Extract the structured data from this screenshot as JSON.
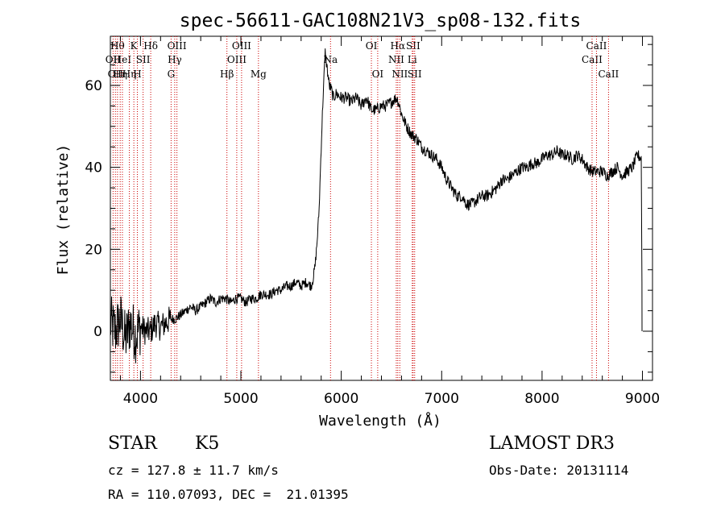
{
  "chart_data": {
    "type": "line",
    "title": "spec-56611-GAC108N21V3_sp08-132.fits",
    "xlabel": "Wavelength (Å)",
    "ylabel": "Flux (relative)",
    "xlim": [
      3700,
      9100
    ],
    "ylim": [
      -12,
      72
    ],
    "xticks": [
      4000,
      5000,
      6000,
      7000,
      8000,
      9000
    ],
    "yticks": [
      0,
      20,
      40,
      60
    ],
    "grid": false,
    "line_color": "#000000",
    "marker_color": "#cc0000",
    "series": [
      {
        "x": [
          3700,
          3750,
          3800,
          3850,
          3900,
          3950,
          4000,
          4050,
          4100,
          4150,
          4200,
          4250,
          4300,
          4350,
          4400,
          4450,
          4500,
          4550,
          4600,
          4650,
          4700,
          4750,
          4800,
          4850,
          4900,
          4950,
          5000,
          5050,
          5100,
          5150,
          5200,
          5250,
          5300,
          5350,
          5400,
          5450,
          5500,
          5550,
          5600,
          5650,
          5700,
          5720,
          5740,
          5760,
          5780,
          5800,
          5820,
          5840,
          5860,
          5880,
          5900,
          5920,
          5950,
          6000,
          6050,
          6100,
          6150,
          6200,
          6250,
          6300,
          6350,
          6400,
          6450,
          6500,
          6550,
          6570,
          6600,
          6650,
          6700,
          6750,
          6800,
          6850,
          6900,
          6950,
          7000,
          7050,
          7100,
          7150,
          7200,
          7250,
          7300,
          7350,
          7400,
          7450,
          7500,
          7550,
          7600,
          7650,
          7700,
          7750,
          7800,
          7850,
          7900,
          7950,
          8000,
          8050,
          8100,
          8150,
          8200,
          8250,
          8300,
          8350,
          8400,
          8450,
          8500,
          8550,
          8600,
          8650,
          8700,
          8750,
          8800,
          8850,
          8900,
          8950,
          9000
        ],
        "y": [
          2,
          0,
          3,
          -2,
          2,
          -1,
          1,
          0,
          0,
          2,
          1,
          2,
          3,
          3,
          4,
          5,
          6,
          5,
          6,
          7,
          8,
          7,
          8,
          8,
          7,
          8,
          8,
          7,
          8,
          8,
          9,
          9,
          9,
          10,
          10,
          11,
          11,
          12,
          11,
          12,
          11,
          13,
          16,
          22,
          30,
          45,
          58,
          68,
          64,
          60,
          59,
          57,
          58,
          57,
          57,
          56,
          57,
          55,
          57,
          54,
          54,
          55,
          55,
          56,
          57,
          56,
          53,
          50,
          48,
          47,
          45,
          44,
          43,
          42,
          40,
          37,
          35,
          33,
          33,
          31,
          31,
          32,
          33,
          33,
          34,
          35,
          37,
          37,
          38,
          39,
          40,
          40,
          41,
          41,
          42,
          43,
          43,
          44,
          43,
          43,
          42,
          43,
          42,
          40,
          39,
          39,
          39,
          38,
          39,
          40,
          38,
          39,
          40,
          43,
          42
        ]
      }
    ],
    "line_markers": [
      {
        "x": 3727,
        "label": "OII",
        "row": 2
      },
      {
        "x": 3750,
        "label": "OII",
        "row": 3
      },
      {
        "x": 3771,
        "label": "Hθ",
        "row": 1
      },
      {
        "x": 3798,
        "label": "Hη",
        "row": 3
      },
      {
        "x": 3820,
        "label": "HeI",
        "row": 2
      },
      {
        "x": 3889,
        "label": "Hη",
        "row": 3
      },
      {
        "x": 3934,
        "label": "K",
        "row": 1
      },
      {
        "x": 3969,
        "label": "H",
        "row": 3
      },
      {
        "x": 4026,
        "label": "SII",
        "row": 2
      },
      {
        "x": 4102,
        "label": "Hδ",
        "row": 1
      },
      {
        "x": 4305,
        "label": "G",
        "row": 3
      },
      {
        "x": 4341,
        "label": "Hγ",
        "row": 2
      },
      {
        "x": 4363,
        "label": "OIII",
        "row": 1
      },
      {
        "x": 4861,
        "label": "Hβ",
        "row": 3
      },
      {
        "x": 4959,
        "label": "OIII",
        "row": 2
      },
      {
        "x": 5007,
        "label": "OIII",
        "row": 1
      },
      {
        "x": 5175,
        "label": "Mg",
        "row": 3
      },
      {
        "x": 5893,
        "label": "Na",
        "row": 2
      },
      {
        "x": 6300,
        "label": "OI",
        "row": 1
      },
      {
        "x": 6363,
        "label": "OI",
        "row": 3
      },
      {
        "x": 6548,
        "label": "NII",
        "row": 2
      },
      {
        "x": 6563,
        "label": "Hα",
        "row": 1
      },
      {
        "x": 6583,
        "label": "NII",
        "row": 3
      },
      {
        "x": 6707,
        "label": "Li",
        "row": 2
      },
      {
        "x": 6716,
        "label": "SII",
        "row": 1
      },
      {
        "x": 6731,
        "label": "SII",
        "row": 3
      },
      {
        "x": 8498,
        "label": "CaII",
        "row": 2
      },
      {
        "x": 8542,
        "label": "CaII",
        "row": 1
      },
      {
        "x": 8662,
        "label": "CaII",
        "row": 3
      }
    ]
  },
  "info": {
    "class_type": "STAR",
    "subclass": "K5",
    "survey": "LAMOST DR3",
    "cz": "cz = 127.8 ± 11.7 km/s",
    "obs_date": "Obs-Date: 20131114",
    "coords": "RA = 110.07093, DEC =  21.01395"
  }
}
